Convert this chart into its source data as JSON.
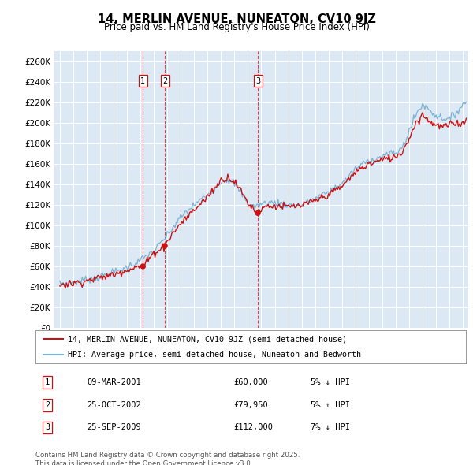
{
  "title": "14, MERLIN AVENUE, NUNEATON, CV10 9JZ",
  "subtitle": "Price paid vs. HM Land Registry's House Price Index (HPI)",
  "bg_color": "#dce9f5",
  "grid_color": "#ffffff",
  "legend_label_red": "14, MERLIN AVENUE, NUNEATON, CV10 9JZ (semi-detached house)",
  "legend_label_blue": "HPI: Average price, semi-detached house, Nuneaton and Bedworth",
  "yticks": [
    0,
    20000,
    40000,
    60000,
    80000,
    100000,
    120000,
    140000,
    160000,
    180000,
    200000,
    220000,
    240000,
    260000
  ],
  "ylim": [
    0,
    270000
  ],
  "xlim": [
    1994.6,
    2025.4
  ],
  "transactions": [
    {
      "num": 1,
      "date": "09-MAR-2001",
      "price": "£60,000",
      "note": "5% ↓ HPI",
      "year": 2001.19,
      "price_val": 60000
    },
    {
      "num": 2,
      "date": "25-OCT-2002",
      "price": "£79,950",
      "note": "5% ↑ HPI",
      "year": 2002.82,
      "price_val": 79950
    },
    {
      "num": 3,
      "date": "25-SEP-2009",
      "price": "£112,000",
      "note": "7% ↓ HPI",
      "year": 2009.74,
      "price_val": 112000
    }
  ],
  "footer": "Contains HM Land Registry data © Crown copyright and database right 2025.\nThis data is licensed under the Open Government Licence v3.0.",
  "hpi_color": "#7ab3d4",
  "price_color": "#cc1111",
  "vline_color": "#cc1111",
  "marker_color": "#cc1111"
}
